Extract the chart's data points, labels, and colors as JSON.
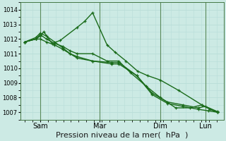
{
  "bg_color": "#cceae4",
  "grid_color": "#b8ddd8",
  "line_color": "#1a6b1a",
  "marker_color": "#1a6b1a",
  "xlabel": "Pression niveau de la mer(  hPa  )",
  "xlabel_fontsize": 8,
  "ylim": [
    1006.5,
    1014.5
  ],
  "yticks": [
    1007,
    1008,
    1009,
    1010,
    1011,
    1012,
    1013,
    1014
  ],
  "series": [
    {
      "x": [
        0,
        12,
        17,
        21,
        30,
        39,
        58,
        66,
        75,
        91,
        100,
        112,
        125,
        136,
        150,
        170,
        196,
        205,
        213
      ],
      "y": [
        1011.8,
        1012.0,
        1012.2,
        1012.5,
        1011.7,
        1011.9,
        1012.8,
        1013.2,
        1013.8,
        1011.6,
        1011.1,
        1010.5,
        1009.8,
        1009.5,
        1009.2,
        1008.5,
        1007.5,
        1007.2,
        1007.0
      ]
    },
    {
      "x": [
        0,
        12,
        17,
        24,
        33,
        42,
        50,
        58,
        75,
        91,
        104,
        117,
        134,
        150,
        167,
        183,
        196,
        213
      ],
      "y": [
        1011.8,
        1012.0,
        1012.3,
        1012.0,
        1011.7,
        1011.5,
        1011.2,
        1011.0,
        1011.0,
        1010.5,
        1010.5,
        1009.7,
        1008.8,
        1008.0,
        1007.3,
        1007.3,
        1007.5,
        1007.0
      ]
    },
    {
      "x": [
        0,
        12,
        17,
        24,
        33,
        42,
        50,
        58,
        75,
        96,
        104,
        124,
        141,
        158,
        175,
        192,
        200,
        213
      ],
      "y": [
        1011.8,
        1012.1,
        1012.4,
        1012.2,
        1011.8,
        1011.4,
        1011.0,
        1010.7,
        1010.5,
        1010.4,
        1010.4,
        1009.5,
        1008.3,
        1007.7,
        1007.5,
        1007.3,
        1007.4,
        1007.05
      ]
    },
    {
      "x": [
        0,
        12,
        17,
        24,
        33,
        42,
        50,
        58,
        75,
        96,
        104,
        124,
        141,
        158,
        175,
        192,
        203,
        213
      ],
      "y": [
        1011.8,
        1012.0,
        1012.0,
        1011.8,
        1011.6,
        1011.3,
        1011.0,
        1010.8,
        1010.5,
        1010.3,
        1010.3,
        1009.5,
        1008.2,
        1007.6,
        1007.4,
        1007.2,
        1007.1,
        1007.0
      ]
    }
  ],
  "vlines_x": [
    17,
    83,
    150,
    200
  ],
  "vline_color": "#5a8a5a",
  "xtick_positions": [
    17,
    83,
    150,
    200
  ],
  "xtick_labels": [
    "Sam",
    "Mar",
    "Dim",
    "Lun"
  ],
  "xlim": [
    -5,
    220
  ],
  "linewidth": 1.0,
  "markersize": 3.5
}
